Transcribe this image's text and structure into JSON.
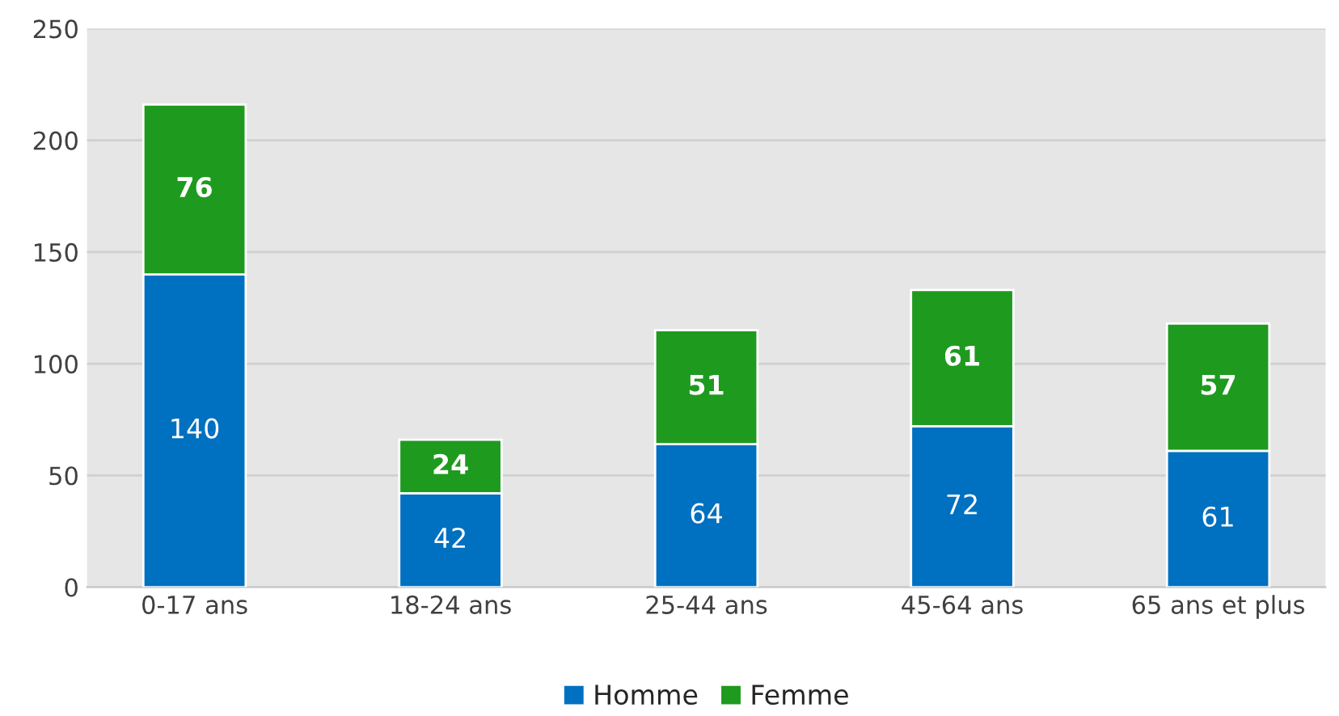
{
  "chart_data": {
    "type": "bar",
    "stacked": true,
    "categories": [
      "0-17 ans",
      "18-24 ans",
      "25-44 ans",
      "45-64 ans",
      "65 ans et plus"
    ],
    "series": [
      {
        "name": "Homme",
        "color": "#0070c0",
        "values": [
          140,
          42,
          64,
          72,
          61
        ]
      },
      {
        "name": "Femme",
        "color": "#1e9a1e",
        "values": [
          76,
          24,
          51,
          61,
          57
        ]
      }
    ],
    "ylim": [
      0,
      250
    ],
    "yticks": [
      0,
      50,
      100,
      150,
      200,
      250
    ],
    "grid": "y",
    "legend": "bottom",
    "data_labels": true
  }
}
